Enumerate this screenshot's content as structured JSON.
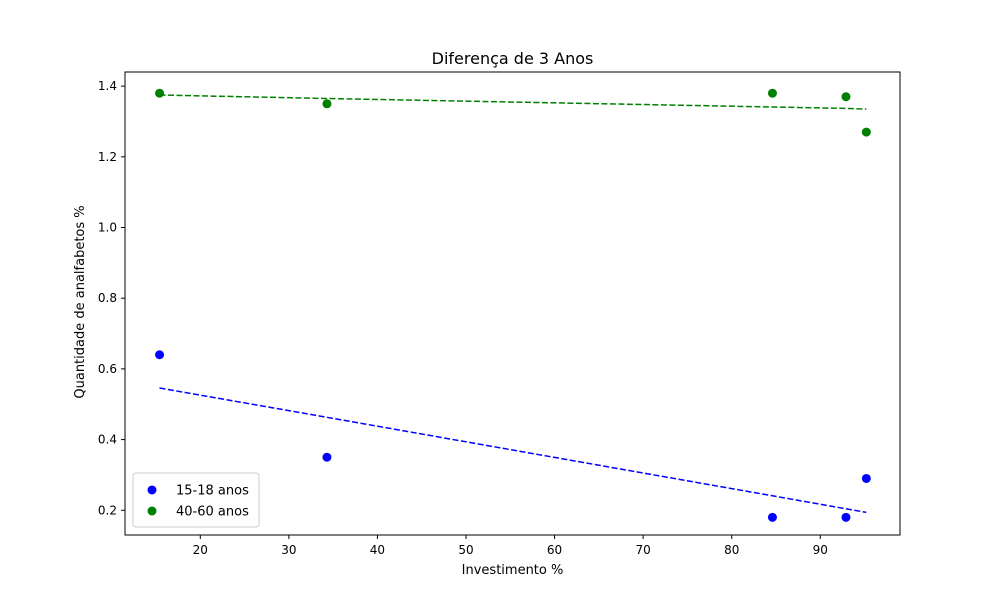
{
  "chart_data": {
    "type": "scatter",
    "title": "Diferença de 3 Anos",
    "xlabel": "Investimento %",
    "ylabel": "Quantidade de analfabetos %",
    "xlim": [
      11.5,
      99
    ],
    "ylim": [
      0.13,
      1.44
    ],
    "xticks": [
      20,
      30,
      40,
      50,
      60,
      70,
      80,
      90
    ],
    "yticks": [
      0.2,
      0.4,
      0.6,
      0.8,
      1.0,
      1.2,
      1.4
    ],
    "ytick_labels": [
      "0.2",
      "0.4",
      "0.6",
      "0.8",
      "1.0",
      "1.2",
      "1.4"
    ],
    "grid": false,
    "legend_position": "lower-left",
    "series": [
      {
        "name": "15-18 anos",
        "color": "#0000ff",
        "points": [
          {
            "x": 15.4,
            "y": 0.64
          },
          {
            "x": 34.3,
            "y": 0.35
          },
          {
            "x": 84.6,
            "y": 0.18
          },
          {
            "x": 92.9,
            "y": 0.18
          },
          {
            "x": 95.2,
            "y": 0.29
          }
        ],
        "trend": [
          {
            "x": 15.4,
            "y": 0.546
          },
          {
            "x": 34.3,
            "y": 0.463
          },
          {
            "x": 84.6,
            "y": 0.241
          },
          {
            "x": 92.9,
            "y": 0.204
          },
          {
            "x": 95.2,
            "y": 0.194
          }
        ]
      },
      {
        "name": "40-60 anos",
        "color": "#008000",
        "points": [
          {
            "x": 15.4,
            "y": 1.38
          },
          {
            "x": 34.3,
            "y": 1.35
          },
          {
            "x": 84.6,
            "y": 1.38
          },
          {
            "x": 92.9,
            "y": 1.37
          },
          {
            "x": 95.2,
            "y": 1.27
          }
        ],
        "trend": [
          {
            "x": 15.4,
            "y": 1.375
          },
          {
            "x": 34.3,
            "y": 1.365
          },
          {
            "x": 84.6,
            "y": 1.341
          },
          {
            "x": 92.9,
            "y": 1.337
          },
          {
            "x": 95.2,
            "y": 1.335
          }
        ]
      }
    ]
  }
}
